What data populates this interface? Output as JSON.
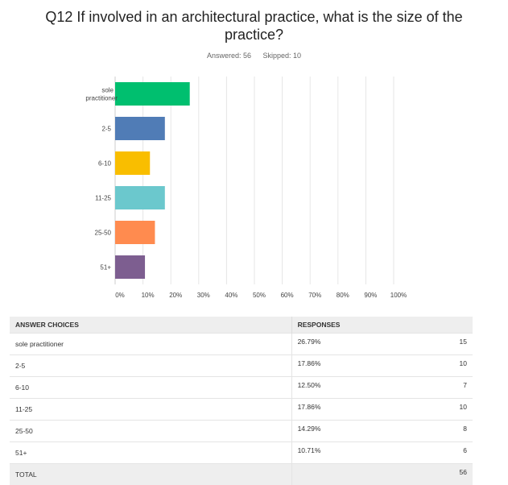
{
  "question": {
    "title": "Q12 If involved in an architectural practice, what is the size of the practice?",
    "answered_label": "Answered: 56",
    "skipped_label": "Skipped: 10"
  },
  "chart_data": {
    "type": "bar",
    "orientation": "horizontal",
    "categories": [
      "sole practitioner",
      "2-5",
      "6-10",
      "11-25",
      "25-50",
      "51+"
    ],
    "values": [
      26.79,
      17.86,
      12.5,
      17.86,
      14.29,
      10.71
    ],
    "colors": [
      "#00bf6f",
      "#507cb6",
      "#f9be00",
      "#6bc8cd",
      "#ff8b4f",
      "#7d5e90"
    ],
    "xlim": [
      0,
      100
    ],
    "xticks": [
      "0%",
      "10%",
      "20%",
      "30%",
      "40%",
      "50%",
      "60%",
      "70%",
      "80%",
      "90%",
      "100%"
    ],
    "grid": true
  },
  "table": {
    "headers": {
      "choices": "ANSWER CHOICES",
      "responses": "RESPONSES"
    },
    "rows": [
      {
        "choice": "sole practitioner",
        "percent": "26.79%",
        "count": "15"
      },
      {
        "choice": "2-5",
        "percent": "17.86%",
        "count": "10"
      },
      {
        "choice": "6-10",
        "percent": "12.50%",
        "count": "7"
      },
      {
        "choice": "11-25",
        "percent": "17.86%",
        "count": "10"
      },
      {
        "choice": "25-50",
        "percent": "14.29%",
        "count": "8"
      },
      {
        "choice": "51+",
        "percent": "10.71%",
        "count": "6"
      }
    ],
    "total": {
      "label": "TOTAL",
      "count": "56"
    }
  }
}
